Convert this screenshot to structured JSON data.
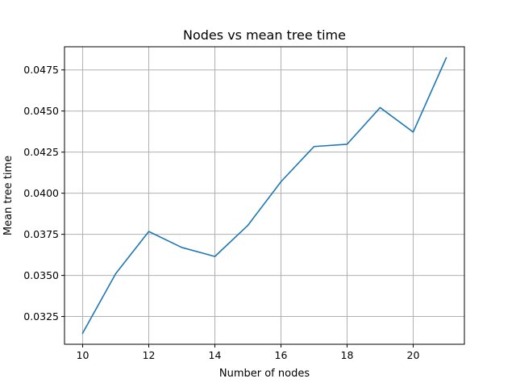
{
  "chart_data": {
    "type": "line",
    "title": "Nodes vs mean tree time",
    "xlabel": "Number of nodes",
    "ylabel": "Mean tree time",
    "x": [
      10,
      11,
      12,
      13,
      14,
      15,
      16,
      17,
      18,
      19,
      20,
      21
    ],
    "series": [
      {
        "values": [
          0.03149,
          0.03511,
          0.03767,
          0.0367,
          0.03615,
          0.03805,
          0.0407,
          0.04284,
          0.04298,
          0.04521,
          0.04372,
          0.04823
        ],
        "color": "#1f77b4"
      }
    ],
    "xlim": [
      9.45,
      21.55
    ],
    "ylim": [
      0.03081,
      0.04891
    ],
    "xticks": [
      10,
      12,
      14,
      16,
      18,
      20
    ],
    "xtick_labels": [
      "10",
      "12",
      "14",
      "16",
      "18",
      "20"
    ],
    "yticks": [
      0.0325,
      0.035,
      0.0375,
      0.04,
      0.0425,
      0.045,
      0.0475
    ],
    "ytick_labels": [
      "0.0325",
      "0.0350",
      "0.0375",
      "0.0400",
      "0.0425",
      "0.0450",
      "0.0475"
    ],
    "grid": true,
    "legend": "none"
  }
}
